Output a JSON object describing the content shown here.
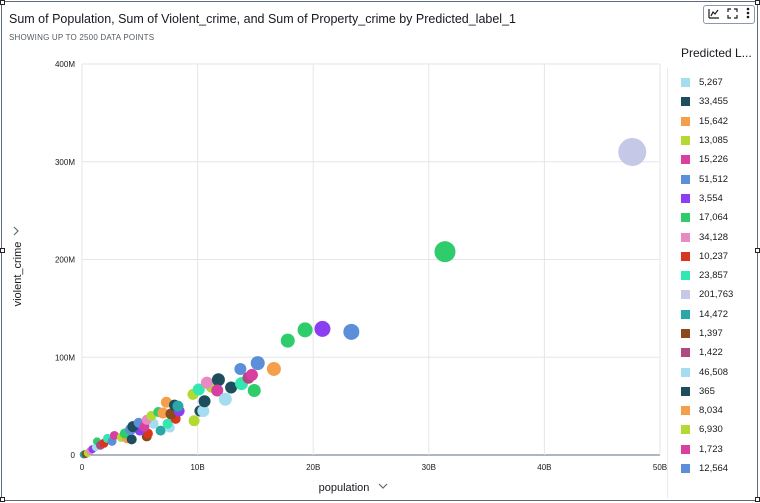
{
  "header": {
    "title": "Sum of Population, Sum of Violent_crime, and Sum of Property_crime by Predicted_label_1",
    "subtitle": "SHOWING UP TO 2500 DATA POINTS"
  },
  "toolbar": {
    "icons": [
      "chart-config-icon",
      "expand-icon",
      "more-menu-icon"
    ]
  },
  "legend": {
    "title": "Predicted L...",
    "items": [
      {
        "label": "5,267",
        "color": "#a6dcef"
      },
      {
        "label": "33,455",
        "color": "#1e4e5e"
      },
      {
        "label": "15,642",
        "color": "#f59e4c"
      },
      {
        "label": "13,085",
        "color": "#b5d933"
      },
      {
        "label": "15,226",
        "color": "#d93fa0"
      },
      {
        "label": "51,512",
        "color": "#5b8fd9"
      },
      {
        "label": "3,554",
        "color": "#8c3ff0"
      },
      {
        "label": "17,064",
        "color": "#2ecc6b"
      },
      {
        "label": "34,128",
        "color": "#e98ac4"
      },
      {
        "label": "10,237",
        "color": "#d9361f"
      },
      {
        "label": "23,857",
        "color": "#33e8b0"
      },
      {
        "label": "201,763",
        "color": "#c5c8e6"
      },
      {
        "label": "14,472",
        "color": "#2aa8a8"
      },
      {
        "label": "1,397",
        "color": "#8a4a1c"
      },
      {
        "label": "1,422",
        "color": "#b0497f"
      },
      {
        "label": "46,508",
        "color": "#a6dcef"
      },
      {
        "label": "365",
        "color": "#1e4e5e"
      },
      {
        "label": "8,034",
        "color": "#f59e4c"
      },
      {
        "label": "6,930",
        "color": "#b5d933"
      },
      {
        "label": "1,723",
        "color": "#d93fa0"
      },
      {
        "label": "12,564",
        "color": "#5b8fd9"
      }
    ]
  },
  "chart_data": {
    "type": "scatter",
    "title": "Sum of Population, Sum of Violent_crime, and Sum of Property_crime by Predicted_label_1",
    "xlabel": "population",
    "ylabel": "violent_crime",
    "xlim": [
      0,
      50000000000
    ],
    "ylim": [
      0,
      400000000
    ],
    "xticks": [
      "0",
      "10B",
      "20B",
      "30B",
      "40B",
      "50B"
    ],
    "yticks": [
      "0",
      "100M",
      "200M",
      "300M",
      "400M"
    ],
    "grid": true,
    "legend_position": "right",
    "size_encodes": "property_crime",
    "points": [
      {
        "x": 47600000000,
        "y": 310000000,
        "c": "#c5c8e6",
        "s": 14
      },
      {
        "x": 31400000000,
        "y": 208000000,
        "c": "#2ecc6b",
        "s": 10.5
      },
      {
        "x": 23300000000,
        "y": 126000000,
        "c": "#5b8fd9",
        "s": 8
      },
      {
        "x": 20800000000,
        "y": 129000000,
        "c": "#8c3ff0",
        "s": 8
      },
      {
        "x": 19300000000,
        "y": 128000000,
        "c": "#2ecc6b",
        "s": 7.5
      },
      {
        "x": 17800000000,
        "y": 117000000,
        "c": "#2ecc6b",
        "s": 7
      },
      {
        "x": 16600000000,
        "y": 88000000,
        "c": "#f59e4c",
        "s": 7
      },
      {
        "x": 15200000000,
        "y": 94000000,
        "c": "#5b8fd9",
        "s": 7
      },
      {
        "x": 14700000000,
        "y": 82000000,
        "c": "#d93fa0",
        "s": 6
      },
      {
        "x": 14400000000,
        "y": 79000000,
        "c": "#b0497f",
        "s": 6
      },
      {
        "x": 13700000000,
        "y": 88000000,
        "c": "#5b8fd9",
        "s": 6
      },
      {
        "x": 14900000000,
        "y": 66000000,
        "c": "#2ecc6b",
        "s": 6.5
      },
      {
        "x": 13800000000,
        "y": 73000000,
        "c": "#33e8b0",
        "s": 6.5
      },
      {
        "x": 12900000000,
        "y": 69000000,
        "c": "#1e4e5e",
        "s": 6
      },
      {
        "x": 12400000000,
        "y": 57000000,
        "c": "#a6dcef",
        "s": 6.5
      },
      {
        "x": 11700000000,
        "y": 66000000,
        "c": "#d93fa0",
        "s": 6
      },
      {
        "x": 11800000000,
        "y": 77000000,
        "c": "#1e4e5e",
        "s": 6.5
      },
      {
        "x": 10800000000,
        "y": 74000000,
        "c": "#e98ac4",
        "s": 6
      },
      {
        "x": 10100000000,
        "y": 67000000,
        "c": "#33e8b0",
        "s": 6
      },
      {
        "x": 11200000000,
        "y": 70000000,
        "c": "#b5d933",
        "s": 6
      },
      {
        "x": 10600000000,
        "y": 55000000,
        "c": "#1e4e5e",
        "s": 6
      },
      {
        "x": 10500000000,
        "y": 45000000,
        "c": "#a6dcef",
        "s": 6
      },
      {
        "x": 10200000000,
        "y": 45000000,
        "c": "#1e4e5e",
        "s": 5.5
      },
      {
        "x": 9600000000,
        "y": 62000000,
        "c": "#b5d933",
        "s": 5.5
      },
      {
        "x": 9700000000,
        "y": 35000000,
        "c": "#b5d933",
        "s": 5.5
      },
      {
        "x": 8300000000,
        "y": 50000000,
        "c": "#2aa8a8",
        "s": 5.5
      },
      {
        "x": 8000000000,
        "y": 51000000,
        "c": "#1e4e5e",
        "s": 5.5
      },
      {
        "x": 8400000000,
        "y": 45000000,
        "c": "#8c3ff0",
        "s": 5.5
      },
      {
        "x": 7300000000,
        "y": 54000000,
        "c": "#f59e4c",
        "s": 5.5
      },
      {
        "x": 7700000000,
        "y": 42000000,
        "c": "#8a4a1c",
        "s": 5.5
      },
      {
        "x": 7000000000,
        "y": 43000000,
        "c": "#f59e4c",
        "s": 5.5
      },
      {
        "x": 6600000000,
        "y": 44000000,
        "c": "#2ecc6b",
        "s": 5
      },
      {
        "x": 8100000000,
        "y": 37000000,
        "c": "#d9361f",
        "s": 5
      },
      {
        "x": 7400000000,
        "y": 32000000,
        "c": "#33e8b0",
        "s": 5
      },
      {
        "x": 6000000000,
        "y": 40000000,
        "c": "#b5d933",
        "s": 5
      },
      {
        "x": 5600000000,
        "y": 36000000,
        "c": "#e98ac4",
        "s": 5
      },
      {
        "x": 6200000000,
        "y": 32000000,
        "c": "#a6dcef",
        "s": 5
      },
      {
        "x": 7600000000,
        "y": 28000000,
        "c": "#a6dcef",
        "s": 5
      },
      {
        "x": 5400000000,
        "y": 29000000,
        "c": "#d93fa0",
        "s": 5
      },
      {
        "x": 6800000000,
        "y": 25000000,
        "c": "#2aa8a8",
        "s": 5
      },
      {
        "x": 4900000000,
        "y": 33000000,
        "c": "#5b8fd9",
        "s": 5
      },
      {
        "x": 4400000000,
        "y": 29000000,
        "c": "#1e4e5e",
        "s": 5.5
      },
      {
        "x": 4200000000,
        "y": 26000000,
        "c": "#5b8fd9",
        "s": 5.5
      },
      {
        "x": 5000000000,
        "y": 25000000,
        "c": "#8c3ff0",
        "s": 5
      },
      {
        "x": 5700000000,
        "y": 22000000,
        "c": "#d9361f",
        "s": 5
      },
      {
        "x": 5600000000,
        "y": 19000000,
        "c": "#8a4a1c",
        "s": 5
      },
      {
        "x": 4300000000,
        "y": 16000000,
        "c": "#1e4e5e",
        "s": 5
      },
      {
        "x": 3700000000,
        "y": 22000000,
        "c": "#2ecc6b",
        "s": 5
      },
      {
        "x": 3900000000,
        "y": 17000000,
        "c": "#f59e4c",
        "s": 5
      },
      {
        "x": 3400000000,
        "y": 18000000,
        "c": "#b5d933",
        "s": 4.5
      },
      {
        "x": 2800000000,
        "y": 20000000,
        "c": "#d93fa0",
        "s": 4.5
      },
      {
        "x": 2600000000,
        "y": 14000000,
        "c": "#5b8fd9",
        "s": 4.5
      },
      {
        "x": 2200000000,
        "y": 17000000,
        "c": "#33e8b0",
        "s": 4.5
      },
      {
        "x": 1900000000,
        "y": 12000000,
        "c": "#d9361f",
        "s": 4.5
      },
      {
        "x": 1600000000,
        "y": 10000000,
        "c": "#b0497f",
        "s": 4.5
      },
      {
        "x": 1300000000,
        "y": 14000000,
        "c": "#2ecc6b",
        "s": 4
      },
      {
        "x": 1200000000,
        "y": 8000000,
        "c": "#a6dcef",
        "s": 4
      },
      {
        "x": 900000000,
        "y": 6000000,
        "c": "#8c3ff0",
        "s": 4
      },
      {
        "x": 700000000,
        "y": 4000000,
        "c": "#e98ac4",
        "s": 4
      },
      {
        "x": 500000000,
        "y": 2000000,
        "c": "#b5d933",
        "s": 4
      },
      {
        "x": 300000000,
        "y": 1000000,
        "c": "#8a4a1c",
        "s": 4
      },
      {
        "x": 150000000,
        "y": 500000,
        "c": "#2aa8a8",
        "s": 4
      }
    ]
  }
}
